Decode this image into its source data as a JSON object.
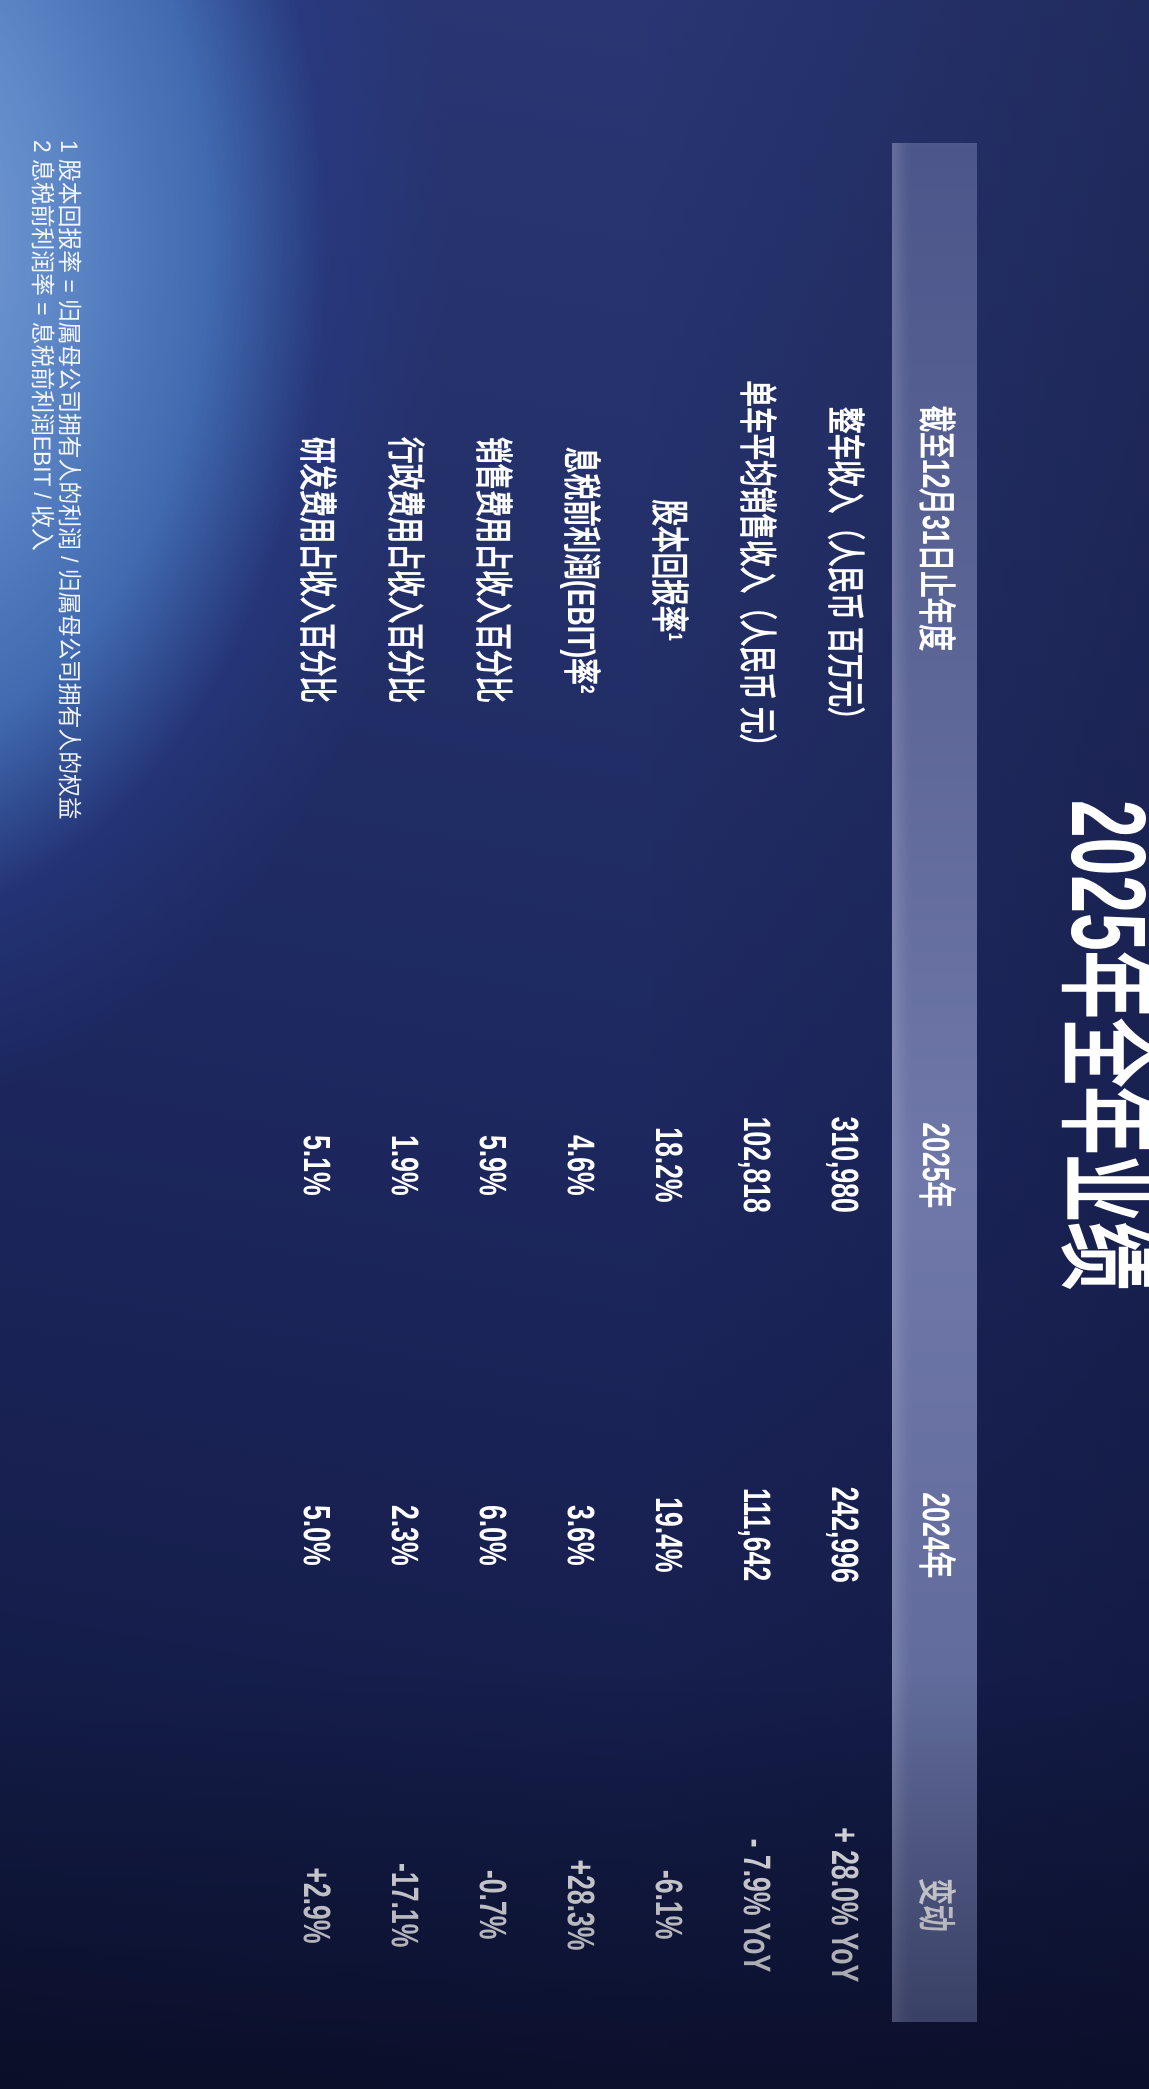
{
  "slide": {
    "title": "2025年全年业绩",
    "orientation_note": "landscape slide rotated 90deg clockwise",
    "colors": {
      "background_navy": "#1d2860",
      "background_dark": "#0d1534",
      "glow_blue": "#7fa6da",
      "header_band": "#5c6697",
      "text": "#ffffff"
    }
  },
  "table": {
    "header": {
      "period": "截至12月31日止年度",
      "col2025": "2025年",
      "col2024": "2024年",
      "change": "变动"
    },
    "rows": [
      {
        "label": "整车收入（人民币 百万元）",
        "y2025": "310,980",
        "y2024": "242,996",
        "change": "+ 28.0% YoY"
      },
      {
        "label": "单车平均销售收入（人民币 元）",
        "y2025": "102,818",
        "y2024": "111,642",
        "change": "- 7.9% YoY"
      },
      {
        "label": "股本回报率¹",
        "y2025": "18.2%",
        "y2024": "19.4%",
        "change": "-6.1%"
      },
      {
        "label": "息税前利润(EBIT)率²",
        "y2025": "4.6%",
        "y2024": "3.6%",
        "change": "+28.3%"
      },
      {
        "label": "销售费用占收入百分比",
        "y2025": "5.9%",
        "y2024": "6.0%",
        "change": "-0.7%"
      },
      {
        "label": "行政费用占收入百分比",
        "y2025": "1.9%",
        "y2024": "2.3%",
        "change": "-17.1%"
      },
      {
        "label": "研发费用占收入百分比",
        "y2025": "5.1%",
        "y2024": "5.0%",
        "change": "+2.9%"
      }
    ]
  },
  "footnotes": [
    "1 股本回报率 = 归属母公司拥有人的利润 / 归属母公司拥有人的权益",
    "2 息税前利润率 = 息税前利润EBIT / 收入"
  ],
  "chart_data": {
    "type": "table",
    "title": "2025年全年业绩",
    "columns": [
      "截至12月31日止年度",
      "2025年",
      "2024年",
      "变动"
    ],
    "rows": [
      [
        "整车收入（人民币 百万元）",
        "310,980",
        "242,996",
        "+ 28.0% YoY"
      ],
      [
        "单车平均销售收入（人民币 元）",
        "102,818",
        "111,642",
        "- 7.9% YoY"
      ],
      [
        "股本回报率¹",
        "18.2%",
        "19.4%",
        "-6.1%"
      ],
      [
        "息税前利润(EBIT)率²",
        "4.6%",
        "3.6%",
        "+28.3%"
      ],
      [
        "销售费用占收入百分比",
        "5.9%",
        "6.0%",
        "-0.7%"
      ],
      [
        "行政费用占收入百分比",
        "1.9%",
        "2.3%",
        "-17.1%"
      ],
      [
        "研发费用占收入百分比",
        "5.1%",
        "5.0%",
        "+2.9%"
      ]
    ]
  }
}
